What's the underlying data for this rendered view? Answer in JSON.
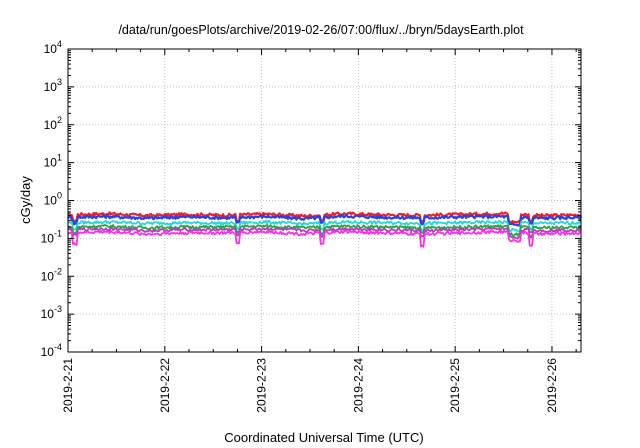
{
  "chart_data": {
    "type": "line",
    "title": "/data/run/goesPlots/archive/2019-02-26/07:00/flux/../bryn/5daysEarth.plot",
    "xlabel": "Coordinated Universal Time (UTC)",
    "ylabel": "cGy/day",
    "y_scale": "log",
    "ylim": [
      0.0001,
      10000
    ],
    "y_ticks": [
      {
        "value": 0.0001,
        "base": "10",
        "exp": "-4"
      },
      {
        "value": 0.001,
        "base": "10",
        "exp": "-3"
      },
      {
        "value": 0.01,
        "base": "10",
        "exp": "-2"
      },
      {
        "value": 0.1,
        "base": "10",
        "exp": "-1"
      },
      {
        "value": 1,
        "base": "10",
        "exp": "0"
      },
      {
        "value": 10,
        "base": "10",
        "exp": "1"
      },
      {
        "value": 100,
        "base": "10",
        "exp": "2"
      },
      {
        "value": 1000,
        "base": "10",
        "exp": "3"
      },
      {
        "value": 10000,
        "base": "10",
        "exp": "4"
      }
    ],
    "x_ticks": [
      "2019-2-21",
      "2019-2-22",
      "2019-2-23",
      "2019-2-24",
      "2019-2-25",
      "2019-2-26"
    ],
    "xlim_days": [
      0,
      5.3
    ],
    "grid": true,
    "series": [
      {
        "color": "#e8242a",
        "values": [
          0.42,
          0.45,
          0.4,
          0.43,
          0.41,
          0.44,
          0.39,
          0.45,
          0.42,
          0.41,
          0.43,
          0.46,
          0.4,
          0.42
        ]
      },
      {
        "color": "#2b3fe6",
        "values": [
          0.36,
          0.38,
          0.34,
          0.37,
          0.35,
          0.38,
          0.33,
          0.39,
          0.36,
          0.35,
          0.37,
          0.38,
          0.34,
          0.36
        ]
      },
      {
        "color": "#27d6d6",
        "values": [
          0.26,
          0.27,
          0.25,
          0.26,
          0.25,
          0.27,
          0.24,
          0.27,
          0.26,
          0.25,
          0.26,
          0.27,
          0.25,
          0.26
        ]
      },
      {
        "color": "#24a83a",
        "values": [
          0.2,
          0.21,
          0.19,
          0.2,
          0.2,
          0.21,
          0.19,
          0.21,
          0.2,
          0.19,
          0.2,
          0.21,
          0.19,
          0.2
        ]
      },
      {
        "color": "#b23ec2",
        "values": [
          0.17,
          0.18,
          0.16,
          0.17,
          0.17,
          0.18,
          0.16,
          0.18,
          0.17,
          0.16,
          0.17,
          0.18,
          0.16,
          0.17
        ]
      },
      {
        "color": "#ff2ee8",
        "values": [
          0.14,
          0.15,
          0.13,
          0.14,
          0.14,
          0.15,
          0.13,
          0.15,
          0.14,
          0.13,
          0.14,
          0.15,
          0.13,
          0.14
        ]
      }
    ]
  }
}
